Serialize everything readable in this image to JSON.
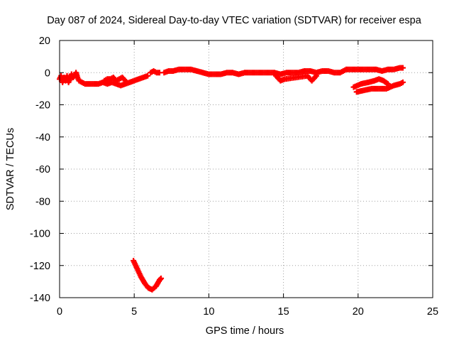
{
  "chart_data": {
    "type": "scatter",
    "title": "Day 087 of 2024, Sidereal Day-to-day VTEC variation (SDTVAR) for receiver espa",
    "xlabel": "GPS time / hours",
    "ylabel": "SDTVAR / TECUs",
    "xlim": [
      0,
      25
    ],
    "ylim": [
      -140,
      20
    ],
    "xticks": [
      0,
      5,
      10,
      15,
      20,
      25
    ],
    "yticks": [
      20,
      0,
      -20,
      -40,
      -60,
      -80,
      -100,
      -120,
      -140
    ],
    "grid": true,
    "legend": "none",
    "series_color": "#ff0000",
    "series": [
      {
        "values": [
          [
            0.0,
            -4
          ],
          [
            0.1,
            -2
          ],
          [
            0.2,
            -6
          ],
          [
            0.3,
            -3
          ],
          [
            0.4,
            -5
          ],
          [
            0.5,
            -2
          ],
          [
            0.6,
            -6
          ],
          [
            0.7,
            -4
          ],
          [
            0.8,
            -1
          ],
          [
            0.9,
            -3
          ],
          [
            1.0,
            -2
          ],
          [
            1.1,
            0
          ],
          [
            1.2,
            -3
          ],
          [
            1.3,
            -5
          ],
          [
            1.5,
            -6
          ],
          [
            1.7,
            -7
          ],
          [
            2.0,
            -7
          ],
          [
            2.3,
            -7
          ],
          [
            2.6,
            -7
          ],
          [
            2.9,
            -6
          ],
          [
            3.2,
            -7
          ],
          [
            3.5,
            -6
          ],
          [
            3.8,
            -7
          ],
          [
            4.1,
            -8
          ],
          [
            4.4,
            -7
          ],
          [
            4.7,
            -6
          ],
          [
            5.0,
            -5
          ],
          [
            5.3,
            -4
          ],
          [
            5.6,
            -3
          ],
          [
            5.9,
            -2
          ]
        ]
      },
      {
        "values": [
          [
            3.0,
            -5
          ],
          [
            3.2,
            -4
          ],
          [
            3.4,
            -4
          ],
          [
            3.6,
            -3
          ],
          [
            3.8,
            -5
          ],
          [
            4.0,
            -4
          ],
          [
            4.2,
            -3
          ],
          [
            4.4,
            -5
          ]
        ]
      },
      {
        "values": [
          [
            6.1,
            0
          ],
          [
            6.3,
            1
          ],
          [
            6.5,
            0
          ],
          [
            6.7,
            0
          ]
        ]
      },
      {
        "values": [
          [
            7.0,
            0
          ],
          [
            7.3,
            1
          ],
          [
            7.6,
            1
          ],
          [
            8.0,
            2
          ],
          [
            8.4,
            2
          ],
          [
            8.8,
            2
          ],
          [
            9.2,
            1
          ],
          [
            9.6,
            0
          ],
          [
            10.0,
            -1
          ],
          [
            10.4,
            -1
          ],
          [
            10.8,
            -1
          ],
          [
            11.2,
            0
          ],
          [
            11.6,
            0
          ],
          [
            12.0,
            -1
          ],
          [
            12.4,
            0
          ],
          [
            12.8,
            0
          ],
          [
            13.2,
            0
          ],
          [
            13.6,
            0
          ],
          [
            14.0,
            0
          ],
          [
            14.4,
            0
          ],
          [
            14.8,
            -1
          ],
          [
            15.2,
            0
          ],
          [
            15.6,
            0
          ],
          [
            16.0,
            0
          ],
          [
            16.4,
            1
          ],
          [
            16.8,
            1
          ],
          [
            17.2,
            0
          ],
          [
            17.6,
            1
          ],
          [
            18.0,
            1
          ],
          [
            18.4,
            0
          ],
          [
            18.8,
            0
          ],
          [
            19.2,
            2
          ],
          [
            19.6,
            2
          ],
          [
            20.0,
            2
          ],
          [
            20.4,
            2
          ],
          [
            20.8,
            2
          ],
          [
            21.2,
            2
          ],
          [
            21.6,
            1
          ],
          [
            22.0,
            2
          ],
          [
            22.4,
            2
          ],
          [
            22.8,
            3
          ],
          [
            23.0,
            3
          ]
        ]
      },
      {
        "values": [
          [
            14.5,
            -2
          ],
          [
            14.8,
            -5
          ],
          [
            15.1,
            -4
          ],
          [
            16.6,
            -2
          ],
          [
            16.9,
            -5
          ],
          [
            17.2,
            -2
          ]
        ]
      },
      {
        "values": [
          [
            19.7,
            -9
          ],
          [
            20.2,
            -7
          ],
          [
            20.7,
            -6
          ],
          [
            21.1,
            -5
          ],
          [
            21.4,
            -4
          ],
          [
            21.7,
            -5
          ],
          [
            22.0,
            -7
          ]
        ]
      },
      {
        "values": [
          [
            19.9,
            -12
          ],
          [
            20.4,
            -11
          ],
          [
            20.9,
            -10
          ],
          [
            21.4,
            -10
          ],
          [
            21.9,
            -10
          ],
          [
            22.4,
            -8
          ],
          [
            22.8,
            -7
          ],
          [
            23.0,
            -6
          ]
        ]
      },
      {
        "values": [
          [
            4.95,
            -117
          ],
          [
            5.2,
            -122
          ],
          [
            5.45,
            -127
          ],
          [
            5.7,
            -131
          ],
          [
            5.95,
            -134
          ],
          [
            6.2,
            -135
          ],
          [
            6.45,
            -133
          ],
          [
            6.7,
            -129
          ],
          [
            6.8,
            -128
          ]
        ]
      }
    ]
  }
}
